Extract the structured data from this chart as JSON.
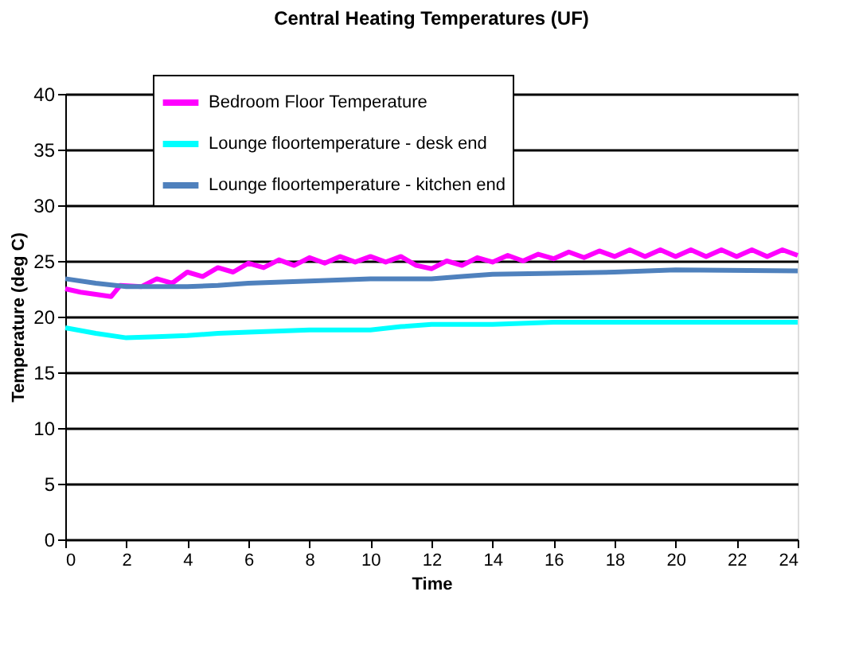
{
  "chart_data": {
    "type": "line",
    "title": "Central Heating Temperatures (UF)",
    "xlabel": "Time",
    "ylabel": "Temperature (deg C)",
    "xlim": [
      0,
      24
    ],
    "xticks": [
      0,
      2,
      4,
      6,
      8,
      10,
      12,
      14,
      16,
      18,
      20,
      22,
      24
    ],
    "ylim": [
      0,
      40
    ],
    "yticks": [
      0,
      5,
      10,
      15,
      20,
      25,
      30,
      35,
      40
    ],
    "grid": "y",
    "legend": "top",
    "line_style": "solid",
    "marker": "none",
    "series": [
      {
        "name": "Bedroom Floor Temperature",
        "color": "#ff00ff",
        "x": [
          0,
          0.5,
          1,
          1.5,
          1.8,
          2.5,
          3,
          3.5,
          4,
          4.5,
          5,
          5.5,
          6,
          6.5,
          7,
          7.5,
          8,
          8.5,
          9,
          9.5,
          10,
          10.5,
          11,
          11.5,
          12,
          12.5,
          13,
          13.5,
          14,
          14.5,
          15,
          15.5,
          16,
          16.5,
          17,
          17.5,
          18,
          18.5,
          19,
          19.5,
          20,
          20.5,
          21,
          21.5,
          22,
          22.5,
          23,
          23.5,
          24
        ],
        "values": [
          22.5,
          22.2,
          22.0,
          21.8,
          22.8,
          22.7,
          23.4,
          23.0,
          24.0,
          23.6,
          24.4,
          24.0,
          24.8,
          24.4,
          25.1,
          24.6,
          25.3,
          24.8,
          25.4,
          24.9,
          25.4,
          24.9,
          25.4,
          24.6,
          24.3,
          25.0,
          24.6,
          25.3,
          24.9,
          25.5,
          25.0,
          25.6,
          25.2,
          25.8,
          25.3,
          25.9,
          25.4,
          26.0,
          25.4,
          26.0,
          25.4,
          26.0,
          25.4,
          26.0,
          25.4,
          26.0,
          25.4,
          26.0,
          25.5
        ]
      },
      {
        "name": "Lounge floortemperature - desk end",
        "color": "#00ffff",
        "x": [
          0,
          1,
          2,
          3,
          4,
          5,
          6,
          8,
          10,
          11,
          12,
          14,
          16,
          20,
          24
        ],
        "values": [
          19.0,
          18.5,
          18.1,
          18.2,
          18.3,
          18.5,
          18.6,
          18.8,
          18.8,
          19.1,
          19.3,
          19.3,
          19.5,
          19.5,
          19.5
        ]
      },
      {
        "name": "Lounge floortemperature - kitchen end",
        "color": "#4f81bd",
        "x": [
          0,
          1,
          2,
          3,
          4,
          5,
          6,
          8,
          10,
          12,
          13,
          14,
          16,
          18,
          20,
          24
        ],
        "values": [
          23.4,
          23.0,
          22.7,
          22.7,
          22.7,
          22.8,
          23.0,
          23.2,
          23.4,
          23.4,
          23.6,
          23.8,
          23.9,
          24.0,
          24.2,
          24.1
        ]
      }
    ]
  }
}
